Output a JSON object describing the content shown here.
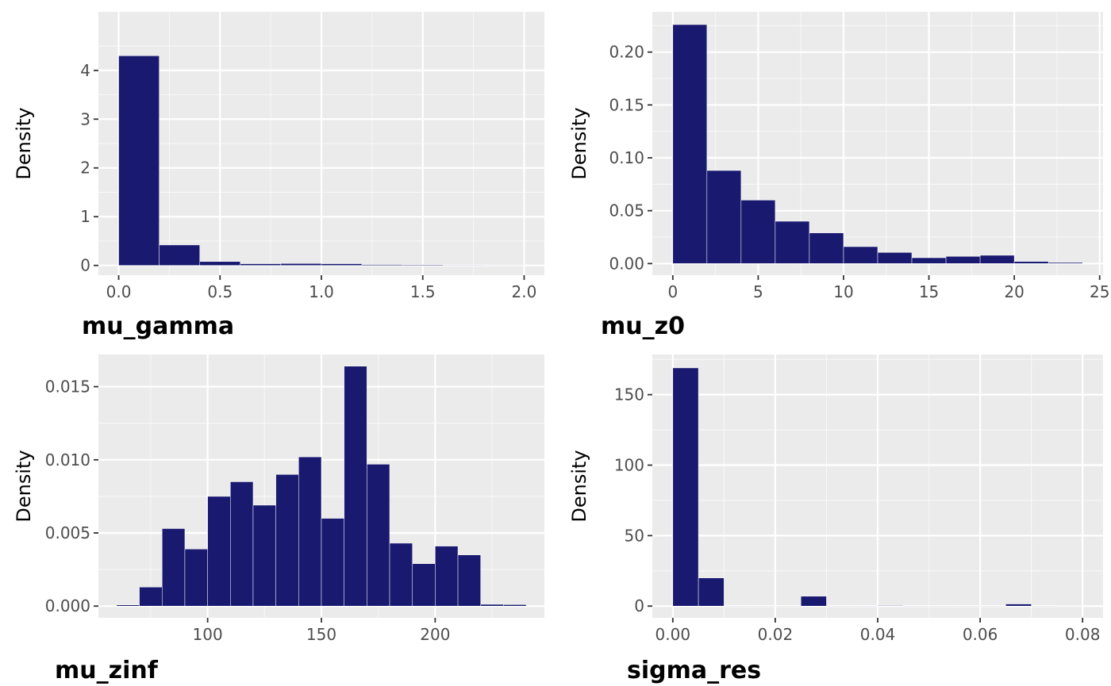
{
  "chart_data": [
    {
      "type": "bar",
      "title": "mu_gamma",
      "xlabel": "mu_gamma",
      "ylabel": "Density",
      "xlim": [
        -0.1,
        2.1
      ],
      "ylim": [
        -0.2,
        5.2
      ],
      "xticks": [
        0.0,
        0.5,
        1.0,
        1.5,
        2.0
      ],
      "xtick_labels": [
        "0.0",
        "0.5",
        "1.0",
        "1.5",
        "2.0"
      ],
      "yticks": [
        0,
        1,
        2,
        3,
        4
      ],
      "ytick_labels": [
        "0",
        "1",
        "2",
        "3",
        "4"
      ],
      "bin_edges": [
        0.0,
        0.2,
        0.4,
        0.6,
        0.8,
        1.0,
        1.2,
        1.4,
        1.6,
        1.8,
        2.0
      ],
      "values": [
        4.3,
        0.42,
        0.08,
        0.035,
        0.04,
        0.035,
        0.018,
        0.014,
        0.01,
        0.007
      ],
      "grid": true
    },
    {
      "type": "bar",
      "title": "mu_z0",
      "xlabel": "mu_z0",
      "ylabel": "Density",
      "xlim": [
        -1.2,
        25.2
      ],
      "ylim": [
        -0.011,
        0.238
      ],
      "xticks": [
        0,
        5,
        10,
        15,
        20,
        25
      ],
      "xtick_labels": [
        "0",
        "5",
        "10",
        "15",
        "20",
        "25"
      ],
      "yticks": [
        0.0,
        0.05,
        0.1,
        0.15,
        0.2
      ],
      "ytick_labels": [
        "0.00",
        "0.05",
        "0.10",
        "0.15",
        "0.20"
      ],
      "bin_edges": [
        0,
        2,
        4,
        6,
        8,
        10,
        12,
        14,
        16,
        18,
        20,
        22,
        24
      ],
      "values": [
        0.226,
        0.088,
        0.06,
        0.04,
        0.029,
        0.016,
        0.0105,
        0.0055,
        0.0068,
        0.0078,
        0.002,
        0.001
      ],
      "grid": true
    },
    {
      "type": "bar",
      "title": "mu_zinf",
      "xlabel": "mu_zinf",
      "ylabel": "Density",
      "xlim": [
        52,
        248
      ],
      "ylim": [
        -0.0008,
        0.0172
      ],
      "xticks": [
        100,
        150,
        200
      ],
      "xtick_labels": [
        "100",
        "150",
        "200"
      ],
      "yticks": [
        0.0,
        0.005,
        0.01,
        0.015
      ],
      "ytick_labels": [
        "0.000",
        "0.005",
        "0.010",
        "0.015"
      ],
      "bin_edges": [
        60,
        70,
        80,
        90,
        100,
        110,
        120,
        130,
        140,
        150,
        160,
        170,
        180,
        190,
        200,
        210,
        220,
        230,
        240
      ],
      "values": [
        8e-05,
        0.0013,
        0.0053,
        0.0039,
        0.0075,
        0.0085,
        0.0069,
        0.009,
        0.0102,
        0.006,
        0.0164,
        0.0097,
        0.0043,
        0.0029,
        0.0041,
        0.0035,
        0.00012,
        0.0001
      ],
      "grid": true
    },
    {
      "type": "bar",
      "title": "sigma_res",
      "xlabel": "sigma_res",
      "ylabel": "Density",
      "xlim": [
        -0.004,
        0.084
      ],
      "ylim": [
        -8.3,
        178.5
      ],
      "xticks": [
        0.0,
        0.02,
        0.04,
        0.06,
        0.08
      ],
      "xtick_labels": [
        "0.00",
        "0.02",
        "0.04",
        "0.06",
        "0.08"
      ],
      "yticks": [
        0,
        50,
        100,
        150
      ],
      "ytick_labels": [
        "0",
        "50",
        "100",
        "150"
      ],
      "bin_edges": [
        0.0,
        0.005,
        0.01,
        0.015,
        0.02,
        0.025,
        0.03,
        0.035,
        0.04,
        0.045,
        0.05,
        0.055,
        0.06,
        0.065,
        0.07,
        0.075,
        0.08
      ],
      "values": [
        169,
        20,
        0,
        0,
        0,
        7,
        0,
        0,
        0.4,
        0,
        0,
        0,
        0,
        1.5,
        0,
        0.3
      ],
      "grid": true
    }
  ],
  "colors": {
    "bar_fill": "#191970",
    "bar_outline": "#ffffff",
    "panel_bg": "#ebebeb",
    "grid_major": "#ffffff",
    "tick_text": "#4d4d4d"
  }
}
